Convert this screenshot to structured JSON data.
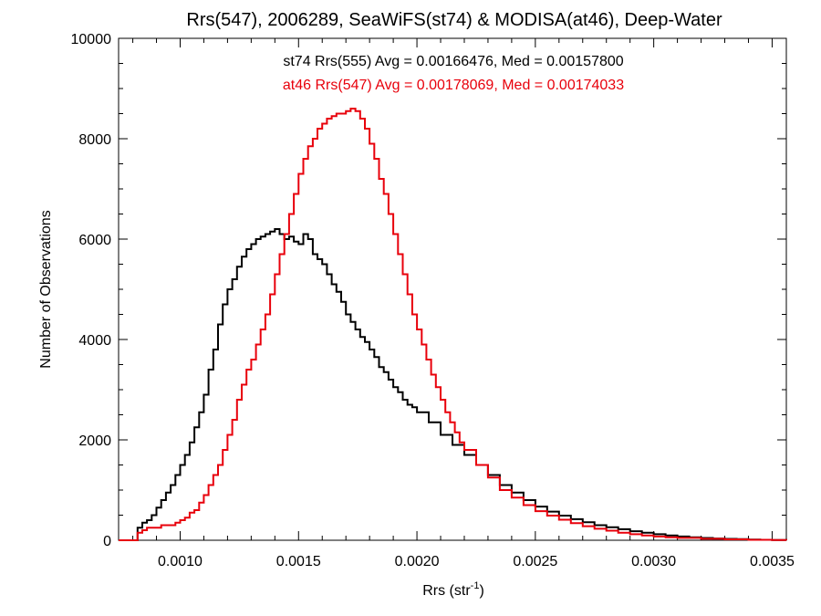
{
  "chart_data": {
    "type": "line",
    "title": "Rrs(547), 2006289, SeaWiFS(st74) & MODISA(at46), Deep-Water",
    "xlabel_main": "Rrs (str",
    "xlabel_sup": "-1",
    "xlabel_close": ")",
    "ylabel": "Number of Observations",
    "xlim": [
      0.00074,
      0.00356
    ],
    "ylim": [
      0,
      10000
    ],
    "x_ticks": [
      0.001,
      0.0015,
      0.002,
      0.0025,
      0.003,
      0.0035
    ],
    "x_tick_labels": [
      "0.0010",
      "0.0015",
      "0.0020",
      "0.0025",
      "0.0030",
      "0.0035"
    ],
    "y_ticks": [
      0,
      2000,
      4000,
      6000,
      8000,
      10000
    ],
    "y_tick_labels": [
      "0",
      "2000",
      "4000",
      "6000",
      "8000",
      "10000"
    ],
    "grid": false,
    "annotations": [
      {
        "text": "st74 Rrs(555) Avg = 0.00166476, Med = 0.00157800",
        "color": "#000000"
      },
      {
        "text": "at46 Rrs(547) Avg = 0.00178069, Med = 0.00174033",
        "color": "#e8000b"
      }
    ],
    "series": [
      {
        "color": "#000000",
        "x": [
          0.00074,
          0.0008,
          0.00082,
          0.00084,
          0.00086,
          0.00088,
          0.0009,
          0.00092,
          0.00094,
          0.00096,
          0.00098,
          0.001,
          0.00102,
          0.00104,
          0.00106,
          0.00108,
          0.0011,
          0.00112,
          0.00114,
          0.00116,
          0.00118,
          0.0012,
          0.00122,
          0.00124,
          0.00126,
          0.00128,
          0.0013,
          0.00132,
          0.00134,
          0.00136,
          0.00138,
          0.0014,
          0.00142,
          0.00144,
          0.00146,
          0.00148,
          0.0015,
          0.00152,
          0.00154,
          0.00156,
          0.00158,
          0.0016,
          0.00162,
          0.00164,
          0.00166,
          0.00168,
          0.0017,
          0.00172,
          0.00174,
          0.00176,
          0.00178,
          0.0018,
          0.00182,
          0.00184,
          0.00186,
          0.00188,
          0.0019,
          0.00192,
          0.00194,
          0.00196,
          0.00198,
          0.002,
          0.00205,
          0.0021,
          0.00215,
          0.0022,
          0.00225,
          0.0023,
          0.00235,
          0.0024,
          0.00245,
          0.0025,
          0.00255,
          0.0026,
          0.00265,
          0.0027,
          0.00275,
          0.0028,
          0.00285,
          0.0029,
          0.00295,
          0.003,
          0.00305,
          0.0031,
          0.00315,
          0.0032,
          0.00325,
          0.0033,
          0.00335,
          0.0034,
          0.00345,
          0.0035,
          0.00356
        ],
        "values": [
          0,
          0,
          250,
          350,
          400,
          500,
          650,
          800,
          950,
          1100,
          1300,
          1500,
          1700,
          1950,
          2250,
          2550,
          2900,
          3400,
          3800,
          4300,
          4700,
          5000,
          5200,
          5450,
          5650,
          5800,
          5900,
          6000,
          6050,
          6100,
          6150,
          6200,
          6100,
          6000,
          6050,
          5950,
          5900,
          6100,
          6000,
          5700,
          5600,
          5500,
          5300,
          5100,
          4950,
          4750,
          4500,
          4350,
          4200,
          4050,
          3950,
          3800,
          3650,
          3450,
          3350,
          3200,
          3050,
          2950,
          2800,
          2700,
          2650,
          2550,
          2350,
          2100,
          1900,
          1700,
          1500,
          1300,
          1100,
          950,
          800,
          670,
          570,
          490,
          420,
          360,
          300,
          260,
          220,
          180,
          150,
          120,
          95,
          75,
          60,
          45,
          35,
          28,
          22,
          15,
          10,
          5,
          0
        ]
      },
      {
        "color": "#e8000b",
        "x": [
          0.00074,
          0.0008,
          0.00082,
          0.00084,
          0.00086,
          0.00088,
          0.0009,
          0.00092,
          0.00094,
          0.00096,
          0.00098,
          0.001,
          0.00102,
          0.00104,
          0.00106,
          0.00108,
          0.0011,
          0.00112,
          0.00114,
          0.00116,
          0.00118,
          0.0012,
          0.00122,
          0.00124,
          0.00126,
          0.00128,
          0.0013,
          0.00132,
          0.00134,
          0.00136,
          0.00138,
          0.0014,
          0.00142,
          0.00144,
          0.00146,
          0.00148,
          0.0015,
          0.00152,
          0.00154,
          0.00156,
          0.00158,
          0.0016,
          0.00162,
          0.00164,
          0.00166,
          0.00168,
          0.0017,
          0.00172,
          0.00174,
          0.00176,
          0.00178,
          0.0018,
          0.00182,
          0.00184,
          0.00186,
          0.00188,
          0.0019,
          0.00192,
          0.00194,
          0.00196,
          0.00198,
          0.002,
          0.00202,
          0.00204,
          0.00206,
          0.00208,
          0.0021,
          0.00212,
          0.00214,
          0.00216,
          0.00218,
          0.0022,
          0.00225,
          0.0023,
          0.00235,
          0.0024,
          0.00245,
          0.0025,
          0.00255,
          0.0026,
          0.00265,
          0.0027,
          0.00275,
          0.0028,
          0.00285,
          0.0029,
          0.00295,
          0.003,
          0.00305,
          0.0031,
          0.0032,
          0.0033,
          0.0034,
          0.0035,
          0.00356
        ],
        "values": [
          0,
          0,
          150,
          200,
          250,
          250,
          250,
          300,
          300,
          300,
          350,
          400,
          450,
          550,
          600,
          750,
          900,
          1100,
          1300,
          1500,
          1800,
          2100,
          2400,
          2800,
          3100,
          3400,
          3600,
          3900,
          4200,
          4500,
          4900,
          5300,
          5700,
          6100,
          6500,
          6900,
          7300,
          7600,
          7850,
          8000,
          8200,
          8300,
          8400,
          8450,
          8500,
          8500,
          8550,
          8600,
          8550,
          8400,
          8200,
          7900,
          7600,
          7200,
          6900,
          6500,
          6100,
          5700,
          5300,
          4900,
          4500,
          4200,
          3900,
          3600,
          3300,
          3050,
          2800,
          2550,
          2350,
          2150,
          1950,
          1800,
          1500,
          1250,
          1000,
          850,
          700,
          580,
          490,
          410,
          340,
          280,
          230,
          190,
          150,
          120,
          95,
          75,
          60,
          48,
          30,
          18,
          10,
          5,
          0
        ]
      }
    ]
  }
}
